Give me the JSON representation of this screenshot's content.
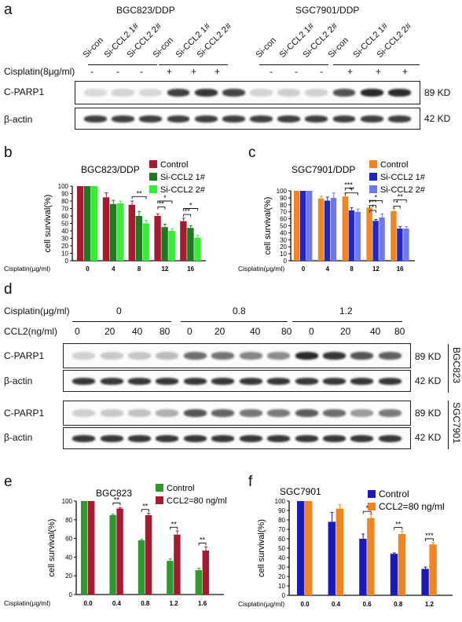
{
  "panel_a": {
    "label": "a",
    "group1": "BGC823/DDP",
    "group2": "SGC7901/DDP",
    "lanes": [
      "Si-con",
      "Si-CCL2 1#",
      "Si-CCL2 2#",
      "Si-con",
      "Si-CCL2 1#",
      "Si-CCL2 2#",
      "Si-con",
      "Si-CCL2 1#",
      "Si-CCL2 2#",
      "Si-con",
      "Si-CCL2 1#",
      "Si-CCL2 2#"
    ],
    "cisplatin_label": "Cisplatin(8μg/ml)",
    "signs": [
      "-",
      "-",
      "-",
      "+",
      "+",
      "+",
      "-",
      "-",
      "-",
      "+",
      "+",
      "+"
    ],
    "rows": [
      {
        "name": "C-PARP1",
        "kd": "89 KD"
      },
      {
        "name": "β-actin",
        "kd": "42 KD"
      }
    ],
    "band_intensity_parp": [
      0.18,
      0.22,
      0.2,
      0.92,
      0.95,
      0.9,
      0.22,
      0.26,
      0.24,
      0.85,
      1.0,
      0.98
    ]
  },
  "panel_d": {
    "label": "d",
    "cisplatin_label": "Cisplatin(μg/ml)",
    "cisplatin_levels": [
      "0",
      "0.8",
      "1.2"
    ],
    "ccl2_label": "CCL2(ng/ml)",
    "ccl2_levels": [
      "0",
      "20",
      "40",
      "80",
      "0",
      "20",
      "40",
      "80",
      "0",
      "20",
      "40",
      "80"
    ],
    "rows": [
      {
        "name": "C-PARP1",
        "kd": "89 KD"
      },
      {
        "name": "β-actin",
        "kd": "42 KD"
      },
      {
        "name": "C-PARP1",
        "kd": "89 KD"
      },
      {
        "name": "β-actin",
        "kd": "42 KD"
      }
    ],
    "cell_lines": [
      "BGC823",
      "SGC7901"
    ],
    "band_intensity_bgc": [
      0.25,
      0.3,
      0.32,
      0.38,
      0.75,
      0.72,
      0.65,
      0.62,
      1.0,
      0.95,
      0.85,
      0.8
    ],
    "band_intensity_sgc": [
      0.25,
      0.3,
      0.35,
      0.45,
      0.85,
      0.78,
      0.72,
      0.7,
      0.82,
      0.75,
      0.55,
      0.7
    ]
  },
  "chart_data": [
    {
      "panel": "b",
      "type": "bar",
      "title": "BGC823/DDP",
      "ylabel": "cell survival(%)",
      "xlabel": "Cisplatin(μg/ml)",
      "categories": [
        "0",
        "4",
        "8",
        "12",
        "16"
      ],
      "ylim": [
        0,
        100
      ],
      "yticks": [
        "0",
        "10",
        "20",
        "30",
        "40",
        "50",
        "60",
        "70",
        "80",
        "90",
        "100"
      ],
      "series": [
        {
          "name": "Control",
          "color": "#a6192e",
          "values": [
            100,
            85,
            75,
            60,
            53
          ],
          "err": [
            0,
            6,
            5,
            3,
            4
          ]
        },
        {
          "name": "Si-CCL2 1#",
          "color": "#1e7a1e",
          "values": [
            100,
            76,
            60,
            45,
            44
          ],
          "err": [
            0,
            5,
            6,
            4,
            3
          ]
        },
        {
          "name": "Si-CCL2 2#",
          "color": "#33ee33",
          "values": [
            100,
            77,
            50,
            40,
            31
          ],
          "err": [
            0,
            3,
            4,
            3,
            3
          ]
        }
      ],
      "annotations": [
        "**",
        "**",
        "*",
        "**",
        "*"
      ]
    },
    {
      "panel": "c",
      "type": "bar",
      "title": "SGC7901/DDP",
      "ylabel": "cell survival(%)",
      "xlabel": "Cisplatin(μg/ml)",
      "categories": [
        "0",
        "4",
        "8",
        "12",
        "16"
      ],
      "ylim": [
        0,
        100
      ],
      "yticks": [
        "0",
        "10",
        "20",
        "30",
        "40",
        "50",
        "60",
        "70",
        "80",
        "90",
        "100"
      ],
      "series": [
        {
          "name": "Control",
          "color": "#f28522",
          "values": [
            100,
            89,
            92,
            76,
            71
          ],
          "err": [
            0,
            3,
            5,
            3,
            4
          ]
        },
        {
          "name": "Si-CCL2 1#",
          "color": "#1f27c8",
          "values": [
            100,
            86,
            72,
            57,
            46
          ],
          "err": [
            0,
            5,
            4,
            2,
            3
          ]
        },
        {
          "name": "Si-CCL2 2#",
          "color": "#7078f0",
          "values": [
            100,
            90,
            70,
            62,
            46
          ],
          "err": [
            0,
            7,
            4,
            5,
            3
          ]
        }
      ],
      "annotations": [
        "***",
        "**",
        "*",
        "***",
        "*",
        "**",
        "*"
      ]
    },
    {
      "panel": "e",
      "type": "bar",
      "title": "BGC823",
      "ylabel": "cell survival(%)",
      "xlabel": "Cisplatin(μg/ml)",
      "categories": [
        "0.0",
        "0.4",
        "0.8",
        "1.2",
        "1.6"
      ],
      "ylim": [
        0,
        100
      ],
      "yticks": [
        "0",
        "20",
        "40",
        "60",
        "80",
        "100"
      ],
      "series": [
        {
          "name": "Control",
          "color": "#2f9a2f",
          "values": [
            100,
            85,
            58,
            36,
            26
          ],
          "err": [
            0,
            1,
            1,
            2,
            2
          ]
        },
        {
          "name": "CCL2=80 ng/ml",
          "color": "#a6192e",
          "values": [
            100,
            92,
            85,
            64,
            47
          ],
          "err": [
            0,
            1,
            2,
            4,
            4
          ]
        }
      ],
      "annotations": [
        "**",
        "**",
        "**",
        "**"
      ]
    },
    {
      "panel": "f",
      "type": "bar",
      "title": "SGC7901",
      "ylabel": "cell survival(%)",
      "xlabel": "Cisplatin(μg/ml)",
      "categories": [
        "0.0",
        "0.4",
        "0.6",
        "0.8",
        "1.2"
      ],
      "ylim": [
        0,
        100
      ],
      "yticks": [
        "0",
        "10",
        "20",
        "30",
        "40",
        "50",
        "60",
        "70",
        "80",
        "90",
        "100"
      ],
      "series": [
        {
          "name": "Control",
          "color": "#1a1ab8",
          "values": [
            100,
            78,
            60,
            44,
            28
          ],
          "err": [
            0,
            10,
            5,
            1,
            2
          ]
        },
        {
          "name": "CCL2=80 ng/ml",
          "color": "#f28522",
          "values": [
            100,
            92,
            82,
            65,
            54
          ],
          "err": [
            0,
            4,
            4,
            3,
            2
          ]
        }
      ],
      "annotations": [
        "*",
        "**",
        "***"
      ]
    }
  ]
}
